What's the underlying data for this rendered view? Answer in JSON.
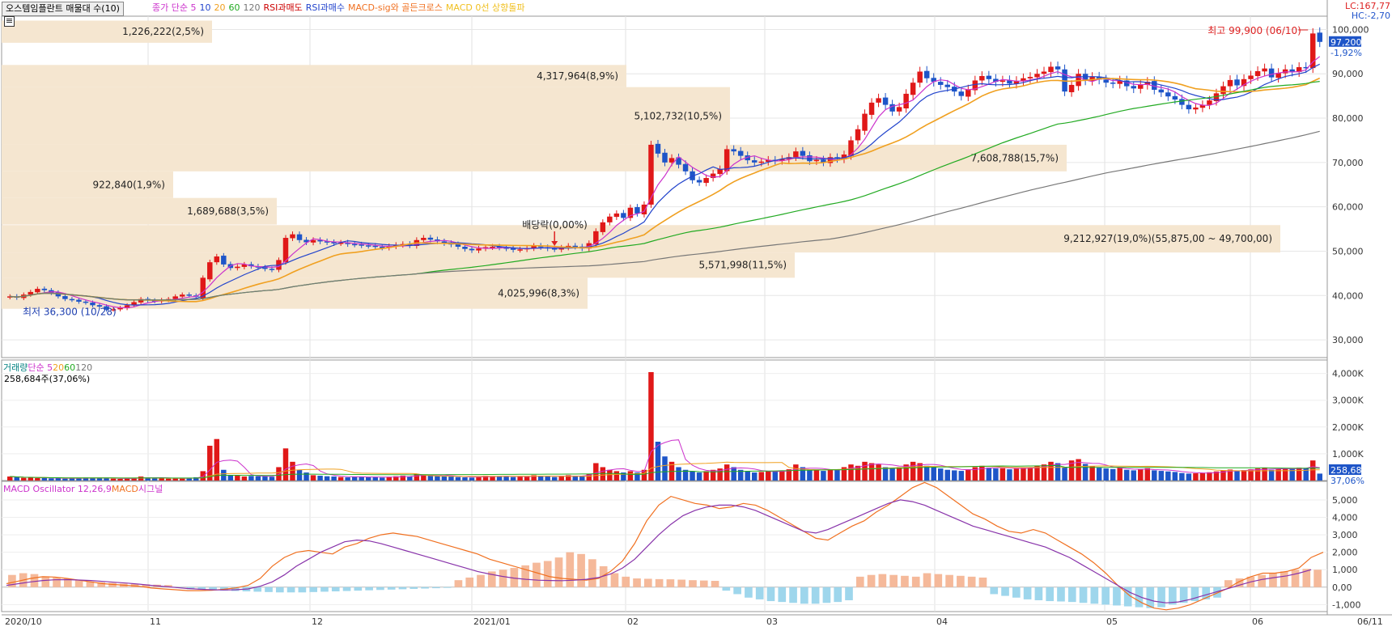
{
  "header": {
    "title": "오스템임플란트 매물대 수(10)",
    "legend_items": [
      {
        "label": "종가 단순 5",
        "color": "#cc33cc"
      },
      {
        "label": "10",
        "color": "#2244cc"
      },
      {
        "label": "20",
        "color": "#f0a020"
      },
      {
        "label": "60",
        "color": "#22aa22"
      },
      {
        "label": "120",
        "color": "#777777"
      },
      {
        "label": "RSI과매도",
        "color": "#cc0000"
      },
      {
        "label": "RSI과매수",
        "color": "#2244cc"
      },
      {
        "label": "MACD-sig와 골든크로스",
        "color": "#f07020"
      },
      {
        "label": "MACD 0선 상향돌파",
        "color": "#f0c020"
      }
    ],
    "lc": "LC:167,77",
    "hc": "HC:-2,70"
  },
  "volume_legend": {
    "items": [
      {
        "label": "거래량",
        "color": "#008080"
      },
      {
        "label": "단순 5",
        "color": "#cc33cc"
      },
      {
        "label": "20",
        "color": "#f0a020"
      },
      {
        "label": "60",
        "color": "#22aa22"
      },
      {
        "label": "120",
        "color": "#777777"
      }
    ],
    "sub": "258,684주(37,06%)"
  },
  "macd_legend": {
    "items": [
      {
        "label": "MACD Oscillator 12,26,9",
        "color": "#cc33cc"
      },
      {
        "label": "MACD",
        "color": "#f07020"
      },
      {
        "label": "시그널",
        "color": "#cc33cc"
      }
    ]
  },
  "chart_data": {
    "type": "candlestick",
    "price_axis": {
      "ticks": [
        "100,000",
        "90,000",
        "80,000",
        "70,000",
        "60,000",
        "50,000",
        "40,000",
        "30,000"
      ],
      "range": [
        26000,
        103000
      ]
    },
    "volume_axis": {
      "ticks": [
        "4,000K",
        "3,000K",
        "2,000K",
        "1,000K"
      ],
      "range": [
        0,
        4200
      ]
    },
    "macd_axis": {
      "ticks": [
        "5,000",
        "4,000",
        "3,000",
        "2,000",
        "1,000",
        "0,00",
        "-1,000"
      ],
      "range": [
        -1400,
        5600
      ]
    },
    "x_labels": [
      "2020/10",
      "11",
      "12",
      "2021/01",
      "02",
      "03",
      "04",
      "05",
      "06",
      "06/11"
    ],
    "current_price": "97,200",
    "current_change": "-1,92%",
    "current_volume": "258,684",
    "current_volume_pct": "37,06%",
    "volume_profile": [
      {
        "label": "1,226,222(2,5%)",
        "lo": 97000,
        "hi": 102000
      },
      {
        "label": "4,317,964(8,9%)",
        "lo": 87000,
        "hi": 92000
      },
      {
        "label": "5,102,732(10,5%)",
        "lo": 74000,
        "hi": 87000
      },
      {
        "label": "7,608,788(15,7%)",
        "lo": 68000,
        "hi": 74000
      },
      {
        "label": "922,840(1,9%)",
        "lo": 62000,
        "hi": 68000
      },
      {
        "label": "1,689,688(3,5%)",
        "lo": 56000,
        "hi": 62000
      },
      {
        "label": "9,212,927(19,0%)(55,875,00 ~ 49,700,00)",
        "lo": 49700,
        "hi": 55875
      },
      {
        "label": "5,571,998(11,5%)",
        "lo": 44000,
        "hi": 49700
      },
      {
        "label": "4,025,996(8,3%)",
        "lo": 37000,
        "hi": 44000
      }
    ],
    "annotations": [
      {
        "label": "배당락(0,00%)"
      },
      {
        "label": "최고 99,900 (06/10)",
        "value": 99900
      },
      {
        "label": "최저 36,300 (10/28)",
        "value": 36300
      }
    ],
    "closes": [
      39800,
      39500,
      40200,
      40800,
      41500,
      41200,
      40600,
      39800,
      39200,
      39000,
      38600,
      38400,
      37800,
      37500,
      36800,
      36900,
      37200,
      37800,
      38500,
      39200,
      38900,
      38700,
      39000,
      39200,
      39800,
      40200,
      40000,
      39800,
      44000,
      47500,
      48800,
      47000,
      46200,
      46500,
      47000,
      46600,
      46300,
      46000,
      45800,
      48000,
      53000,
      53800,
      52500,
      52000,
      52500,
      52200,
      52000,
      51800,
      51900,
      51600,
      51500,
      51300,
      51200,
      51000,
      50800,
      51100,
      51400,
      51600,
      51300,
      52500,
      53000,
      52600,
      52200,
      51800,
      51500,
      51000,
      50500,
      50200,
      50600,
      50900,
      51000,
      50800,
      50600,
      50300,
      50400,
      50700,
      51200,
      50900,
      50600,
      50400,
      50800,
      51200,
      51000,
      50600,
      51800,
      54500,
      56500,
      57800,
      58500,
      57500,
      59800,
      58500,
      60500,
      74000,
      72000,
      70000,
      71000,
      69500,
      68000,
      66000,
      65500,
      66500,
      67500,
      68500,
      73000,
      72500,
      71500,
      70500,
      70000,
      70200,
      70600,
      70400,
      70800,
      71200,
      72500,
      71500,
      70300,
      70600,
      70000,
      71200,
      70800,
      71800,
      75000,
      77500,
      81000,
      83500,
      84500,
      83000,
      81500,
      82500,
      85500,
      88000,
      90500,
      89000,
      88200,
      87500,
      87000,
      86000,
      85000,
      86500,
      88500,
      89500,
      88800,
      88200,
      88500,
      87800,
      88400,
      89000,
      89300,
      90000,
      90500,
      91600,
      91000,
      86000,
      87500,
      90000,
      88500,
      89300,
      88700,
      88000,
      87800,
      88500,
      87200,
      86700,
      87500,
      88200,
      86400,
      85800,
      84900,
      84200,
      83000,
      82000,
      82400,
      83000,
      84000,
      85600,
      87200,
      88600,
      87400,
      88800,
      89600,
      90600,
      91200,
      89200,
      90200,
      91000,
      90500,
      91500,
      91300,
      99100,
      97200
    ],
    "volumes": [
      150,
      120,
      100,
      110,
      90,
      100,
      80,
      90,
      70,
      80,
      90,
      110,
      100,
      90,
      80,
      70,
      60,
      80,
      100,
      150,
      110,
      80,
      90,
      70,
      80,
      90,
      100,
      120,
      350,
      1300,
      1550,
      400,
      200,
      180,
      150,
      170,
      160,
      150,
      140,
      500,
      1200,
      700,
      400,
      300,
      200,
      180,
      160,
      150,
      130,
      120,
      140,
      150,
      130,
      120,
      110,
      140,
      160,
      180,
      150,
      250,
      230,
      200,
      180,
      160,
      150,
      130,
      120,
      110,
      150,
      180,
      170,
      160,
      150,
      130,
      140,
      160,
      200,
      180,
      150,
      130,
      170,
      200,
      180,
      160,
      250,
      650,
      500,
      400,
      350,
      300,
      350,
      300,
      400,
      4050,
      1450,
      900,
      700,
      500,
      400,
      350,
      300,
      350,
      400,
      450,
      600,
      500,
      400,
      350,
      300,
      320,
      360,
      340,
      380,
      420,
      600,
      500,
      400,
      380,
      360,
      420,
      400,
      500,
      600,
      550,
      700,
      650,
      600,
      500,
      450,
      500,
      600,
      700,
      650,
      550,
      500,
      450,
      400,
      380,
      360,
      420,
      500,
      550,
      480,
      450,
      460,
      420,
      450,
      480,
      500,
      550,
      600,
      700,
      650,
      500,
      750,
      800,
      620,
      540,
      480,
      450,
      430,
      470,
      400,
      380,
      420,
      460,
      380,
      360,
      340,
      320,
      280,
      260,
      270,
      290,
      310,
      340,
      380,
      410,
      360,
      390,
      420,
      450,
      470,
      400,
      430,
      460,
      440,
      480,
      470,
      750,
      259
    ],
    "macd": [
      200,
      350,
      500,
      600,
      580,
      500,
      400,
      300,
      200,
      150,
      100,
      50,
      -50,
      -100,
      -150,
      -200,
      -200,
      -180,
      -120,
      -40,
      100,
      500,
      1200,
      1700,
      2000,
      2100,
      2000,
      1900,
      2300,
      2500,
      2800,
      3000,
      3100,
      3000,
      2900,
      2700,
      2500,
      2300,
      2100,
      1900,
      1600,
      1400,
      1200,
      1000,
      800,
      600,
      500,
      450,
      400,
      500,
      900,
      1500,
      2500,
      3800,
      4700,
      5200,
      5000,
      4800,
      4700,
      4500,
      4600,
      4800,
      4700,
      4400,
      4000,
      3600,
      3200,
      2800,
      2700,
      3100,
      3500,
      3800,
      4300,
      4700,
      5200,
      5700,
      6000,
      5700,
      5200,
      4700,
      4200,
      3900,
      3500,
      3200,
      3100,
      3300,
      3100,
      2700,
      2300,
      1900,
      1400,
      800,
      100,
      -500,
      -900,
      -1200,
      -1300,
      -1200,
      -1000,
      -700,
      -400,
      -100,
      300,
      600,
      800,
      800,
      900,
      1100,
      1700,
      2000
    ],
    "signal": [
      100,
      200,
      300,
      380,
      420,
      430,
      410,
      380,
      330,
      280,
      230,
      170,
      100,
      40,
      -20,
      -80,
      -120,
      -150,
      -160,
      -150,
      -100,
      50,
      300,
      700,
      1200,
      1600,
      2000,
      2300,
      2600,
      2700,
      2650,
      2500,
      2300,
      2100,
      1900,
      1700,
      1500,
      1300,
      1100,
      900,
      750,
      620,
      520,
      450,
      400,
      380,
      370,
      400,
      450,
      550,
      750,
      1100,
      1600,
      2300,
      3000,
      3600,
      4100,
      4400,
      4600,
      4700,
      4700,
      4600,
      4400,
      4100,
      3800,
      3500,
      3200,
      3100,
      3300,
      3600,
      3900,
      4200,
      4500,
      4800,
      5000,
      4900,
      4700,
      4400,
      4100,
      3800,
      3500,
      3300,
      3100,
      2900,
      2700,
      2500,
      2300,
      2000,
      1700,
      1300,
      900,
      500,
      100,
      -300,
      -600,
      -800,
      -900,
      -850,
      -700,
      -500,
      -300,
      -100,
      100,
      300,
      450,
      550,
      650,
      800,
      1000
    ],
    "osc_bars": [
      700,
      800,
      750,
      620,
      550,
      480,
      400,
      320,
      280,
      240,
      200,
      180,
      160,
      140,
      120,
      -50,
      -120,
      -150,
      -180,
      -200,
      -220,
      -240,
      -260,
      -280,
      -300,
      -300,
      -300,
      -280,
      -260,
      -240,
      -220,
      -200,
      -180,
      -160,
      -140,
      -120,
      -100,
      -80,
      -60,
      -40,
      400,
      550,
      700,
      900,
      1000,
      1100,
      1250,
      1400,
      1500,
      1700,
      2000,
      1900,
      1600,
      1200,
      800,
      600,
      500,
      480,
      460,
      450,
      430,
      400,
      380,
      360,
      -200,
      -400,
      -600,
      -700,
      -800,
      -850,
      -900,
      -950,
      -950,
      -900,
      -850,
      -750,
      600,
      700,
      750,
      700,
      650,
      600,
      800,
      750,
      700,
      650,
      600,
      550,
      -400,
      -500,
      -600,
      -700,
      -750,
      -800,
      -820,
      -850,
      -900,
      -950,
      -1000,
      -1050,
      -1100,
      -1150,
      -1200,
      -1150,
      -1000,
      -900,
      -800,
      -700,
      -600,
      400,
      500,
      600,
      700,
      800,
      900,
      1000,
      1050,
      1000
    ]
  }
}
